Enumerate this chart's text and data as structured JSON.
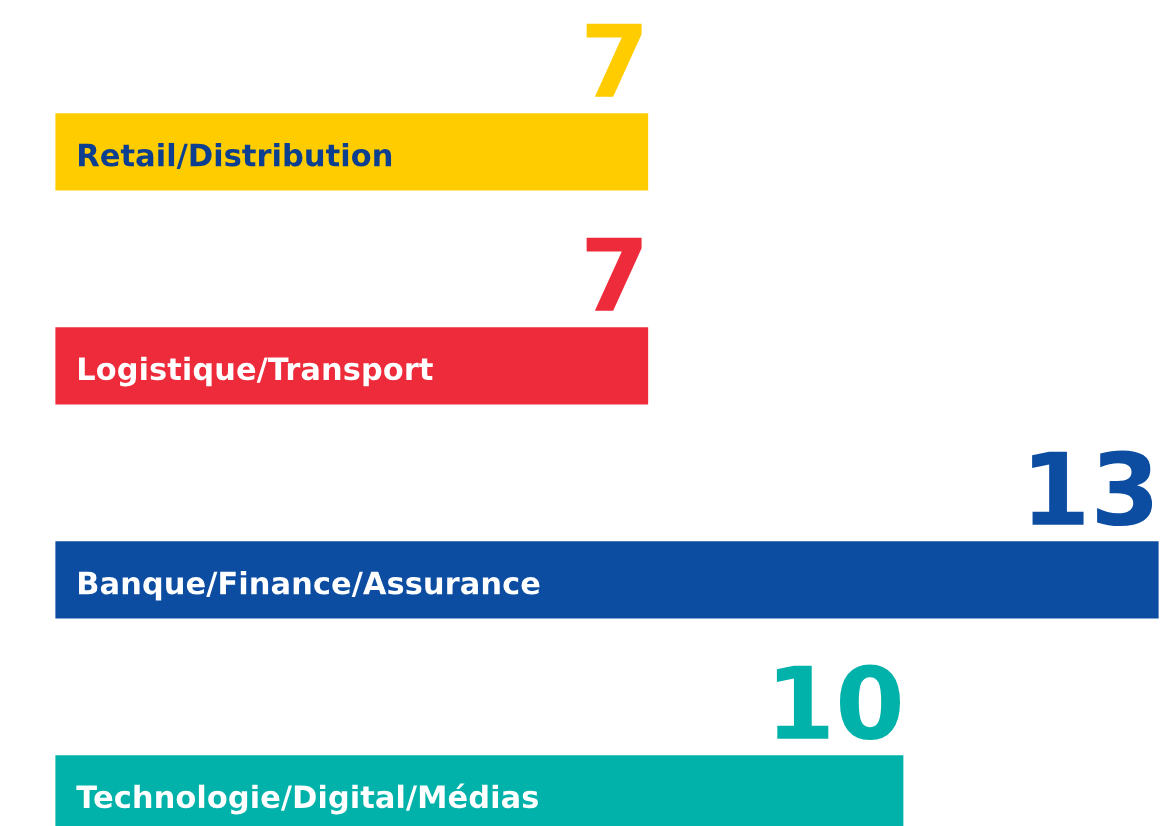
{
  "chart_data": {
    "type": "bar",
    "orientation": "horizontal",
    "categories": [
      "Retail/Distribution",
      "Logistique/Transport",
      "Banque/Finance/Assurance",
      "Technologie/Digital/Médias"
    ],
    "values": [
      7,
      7,
      13,
      10
    ],
    "colors": [
      "#ffcc00",
      "#ee2b3b",
      "#0c4da2",
      "#00b2a9"
    ],
    "data_labels": true
  }
}
